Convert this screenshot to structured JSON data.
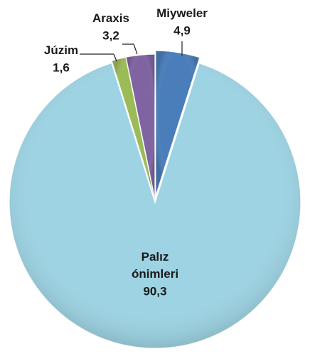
{
  "chart_data": {
    "type": "pie",
    "categories": [
      "Miyweler",
      "Palız ónimleri",
      "Júzim",
      "Araxis"
    ],
    "values": [
      4.9,
      90.3,
      1.6,
      3.2
    ],
    "value_labels": [
      "4,9",
      "90,3",
      "1,6",
      "3,2"
    ],
    "colors": [
      "#4a7ebb",
      "#9dd3e3",
      "#9bbb59",
      "#8064a2"
    ]
  }
}
